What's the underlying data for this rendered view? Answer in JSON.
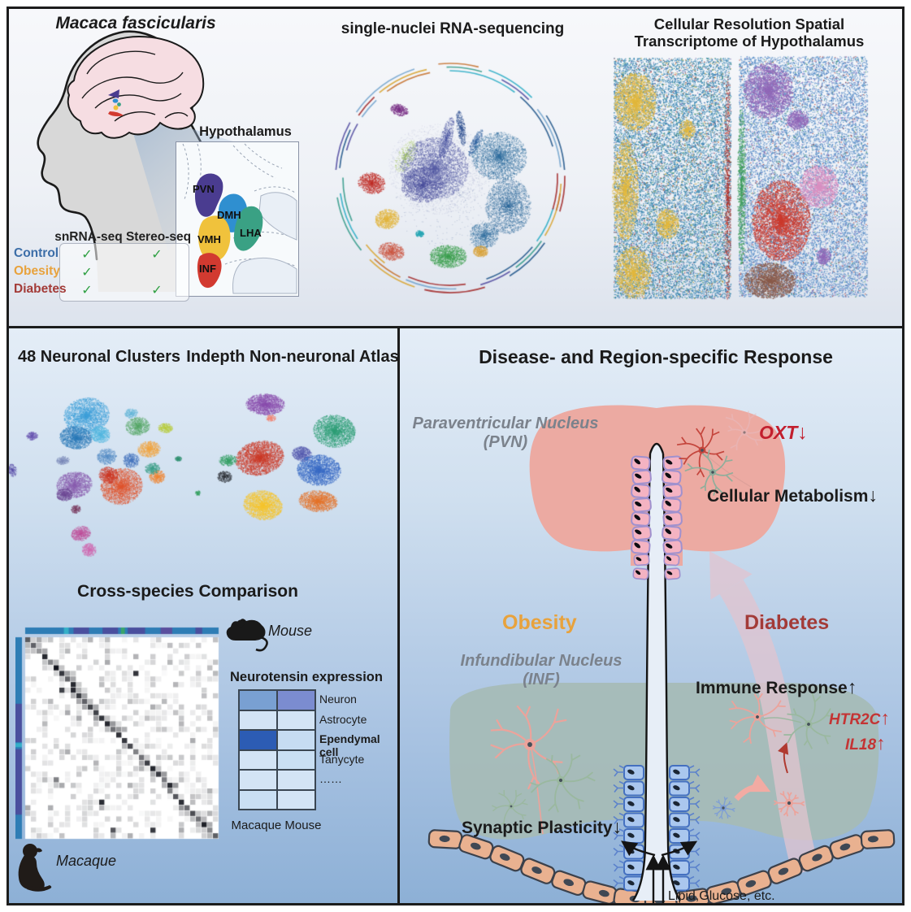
{
  "top": {
    "species_title": "Macaca fascicularis",
    "umap_title": "single-nuclei RNA-sequencing",
    "spatial_title_line1": "Cellular Resolution Spatial",
    "spatial_title_line2": "Transcriptome of Hypothalamus",
    "hypothalamus": {
      "title": "Hypothalamus",
      "regions": {
        "pvn": "PVN",
        "dmh": "DMH",
        "lha": "LHA",
        "vmh": "VMH",
        "inf": "INF"
      },
      "region_colors": {
        "pvn": "#4a3c90",
        "dmh": "#2f8fd0",
        "lha": "#3aa184",
        "vmh": "#f0c23c",
        "inf": "#d23a30"
      }
    },
    "assay_table": {
      "col1": "snRNA-seq",
      "col2": "Stereo-seq",
      "rows": [
        {
          "label": "Control",
          "color": "#3c6ea8",
          "snrna": "✓",
          "stereo": "✓"
        },
        {
          "label": "Obesity",
          "color": "#e8a23c",
          "snrna": "✓",
          "stereo": ""
        },
        {
          "label": "Diabetes",
          "color": "#a33b38",
          "snrna": "✓",
          "stereo": "✓"
        }
      ],
      "check_color": "#2fa043"
    }
  },
  "bottom_left": {
    "neuronal_title": "48 Neuronal Clusters",
    "nonneuronal_title": "Indepth Non-neuronal Atlas",
    "cross_title": "Cross-species Comparison",
    "mouse_label": "Mouse",
    "macaque_label": "Macaque",
    "neurotensin": {
      "title": "Neurotensin expression",
      "row_labels": [
        "Neuron",
        "Astrocyte",
        "Ependymal cell",
        "Tanycyte",
        "……",
        ""
      ],
      "col_labels": "Macaque Mouse",
      "cell_colors": [
        [
          "#79a0d2",
          "#7b8cd0"
        ],
        [
          "#d3e4f5",
          "#d3e4f5"
        ],
        [
          "#2c5cb4",
          "#c6dcf2"
        ],
        [
          "#d3e4f5",
          "#c9dff3"
        ],
        [
          "#d3e4f5",
          "#d3e4f5"
        ],
        [
          "#c9dff3",
          "#d3e4f5"
        ]
      ]
    }
  },
  "bottom_right": {
    "title": "Disease- and Region-specific Response",
    "pvn_line1": "Paraventricular Nucleus",
    "pvn_line2": "(PVN)",
    "inf_line1": "Infundibular Nucleus",
    "inf_line2": "(INF)",
    "obesity": "Obesity",
    "diabetes": "Diabetes",
    "oxt": "OXT",
    "cellular_metabolism": "Cellular Metabolism",
    "immune_response": "Immune Response",
    "htr2c": "HTR2C",
    "il18": "IL18",
    "synaptic_plasticity": "Synaptic Plasticity",
    "lipid": "Lipid,Glucose, etc.",
    "up": "↑",
    "down": "↓",
    "obesity_color": "#e8a23c",
    "diabetes_color": "#a33b38",
    "marker_red": "#c21f2e"
  }
}
